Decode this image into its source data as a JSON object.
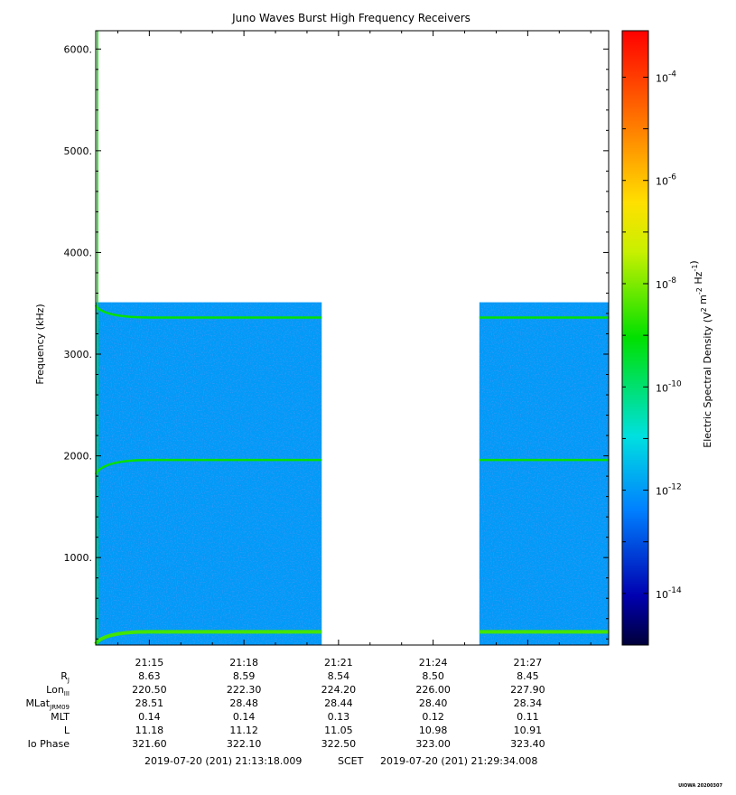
{
  "chart_data": {
    "type": "heatmap",
    "title": "Juno Waves Burst High Frequency Receivers",
    "ylabel": "Frequency (kHz)",
    "colorbar_label": "Electric Spectral Density (V^2 m^-2 Hz^-1)",
    "ylim": [
      140,
      6180
    ],
    "y_ticks": [
      1000,
      2000,
      3000,
      4000,
      5000,
      6000
    ],
    "y_tick_labels": [
      "1000.",
      "2000.",
      "3000.",
      "4000.",
      "5000.",
      "6000."
    ],
    "x_time_range": [
      "21:13:18.009",
      "21:29:34.008"
    ],
    "x_ticks": [
      "21:15",
      "21:18",
      "21:21",
      "21:24",
      "21:27"
    ],
    "colorbar_log_range": [
      -15,
      -3.1
    ],
    "colorbar_ticks": [
      {
        "exp": -4,
        "label": "-4"
      },
      {
        "exp": -6,
        "label": "-6"
      },
      {
        "exp": -8,
        "label": "-8"
      },
      {
        "exp": -10,
        "label": "-10"
      },
      {
        "exp": -12,
        "label": "-12"
      },
      {
        "exp": -14,
        "label": "-14"
      }
    ],
    "data_segments": [
      {
        "start": "21:13:18",
        "end": "21:20:28",
        "fmax_khz": 3510
      },
      {
        "start": "21:25:28",
        "end": "21:29:34",
        "fmax_khz": 3510
      }
    ],
    "background_log_density": -12,
    "emission_lines": [
      {
        "name": "upper band",
        "freq_khz": 3360,
        "start_freq_khz": 3480,
        "log_density": -9
      },
      {
        "name": "middle band",
        "freq_khz": 1960,
        "start_freq_khz": 1820,
        "log_density": -9
      },
      {
        "name": "lower band",
        "freq_khz": 270,
        "start_freq_khz": 150,
        "log_density": -8.5
      }
    ],
    "ephemeris": {
      "labels": [
        "R_J",
        "Lon_III",
        "MLat_JRM09",
        "MLT",
        "L",
        "Io Phase"
      ],
      "rows": [
        [
          "8.63",
          "8.59",
          "8.54",
          "8.50",
          "8.45"
        ],
        [
          "220.50",
          "222.30",
          "224.20",
          "226.00",
          "227.90"
        ],
        [
          "28.51",
          "28.48",
          "28.44",
          "28.40",
          "28.34"
        ],
        [
          "0.14",
          "0.14",
          "0.13",
          "0.12",
          "0.11"
        ],
        [
          "11.18",
          "11.12",
          "11.05",
          "10.98",
          "10.91"
        ],
        [
          "321.60",
          "322.10",
          "322.50",
          "323.00",
          "323.40"
        ]
      ]
    },
    "footer": {
      "start": "2019-07-20 (201) 21:13:18.009",
      "scet": "SCET",
      "end": "2019-07-20 (201) 21:29:34.008"
    },
    "credit": "UIOWA 20200307"
  }
}
